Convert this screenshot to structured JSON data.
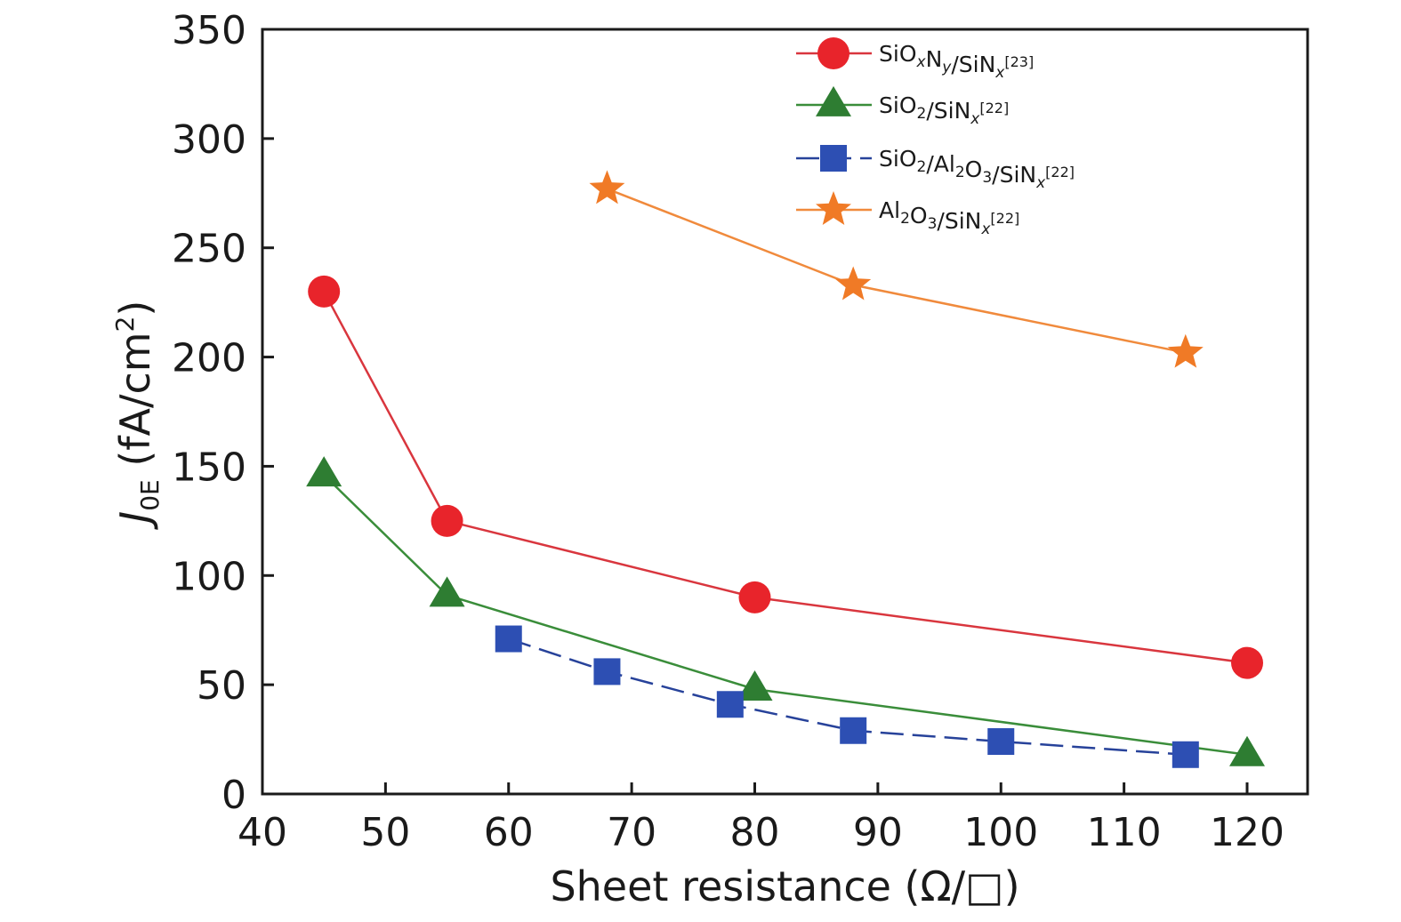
{
  "chart_data": {
    "type": "line",
    "title": "",
    "xlabel": "Sheet resistance (Ω/□)",
    "ylabel": {
      "main": "J",
      "subscript": "0E",
      "unit": " (fA/cm",
      "unit_sup": "2",
      "unit_end": ")"
    },
    "xlim": [
      40,
      125
    ],
    "ylim": [
      0,
      350
    ],
    "xticks": [
      "40",
      "50",
      "60",
      "70",
      "80",
      "90",
      "100",
      "110",
      "120"
    ],
    "yticks": [
      "0",
      "50",
      "100",
      "150",
      "200",
      "250",
      "300",
      "350"
    ],
    "legend_position": "top-right",
    "grid": false,
    "series": [
      {
        "name_parts": [
          [
            "SiO",
            ""
          ],
          [
            "x",
            "sub"
          ],
          [
            "N",
            ""
          ],
          [
            "y",
            "sub"
          ],
          [
            "/SiN",
            ""
          ],
          [
            "x",
            "sub"
          ],
          [
            "[23]",
            "sup"
          ]
        ],
        "marker": "circle",
        "color": "#e8242b",
        "line_color": "#d9363e",
        "dashed": false,
        "x": [
          45,
          55,
          80,
          120
        ],
        "y": [
          230,
          125,
          90,
          60
        ]
      },
      {
        "name_parts": [
          [
            "SiO",
            ""
          ],
          [
            "2",
            "sub"
          ],
          [
            "/SiN",
            ""
          ],
          [
            "x",
            "sub"
          ],
          [
            "[22]",
            "sup"
          ]
        ],
        "marker": "triangle",
        "color": "#2e7d32",
        "line_color": "#3a8d3a",
        "dashed": false,
        "x": [
          45,
          55,
          80,
          120
        ],
        "y": [
          146,
          91,
          48,
          18
        ]
      },
      {
        "name_parts": [
          [
            "SiO",
            ""
          ],
          [
            "2",
            "sub"
          ],
          [
            "/Al",
            ""
          ],
          [
            "2",
            "sub"
          ],
          [
            "O",
            ""
          ],
          [
            "3",
            "sub"
          ],
          [
            "/SiN",
            ""
          ],
          [
            "x",
            "sub"
          ],
          [
            "[22]",
            "sup"
          ]
        ],
        "marker": "square",
        "color": "#2d4fb3",
        "line_color": "#27429a",
        "dashed": true,
        "x": [
          60,
          68,
          78,
          88,
          100,
          115
        ],
        "y": [
          71,
          56,
          41,
          29,
          24,
          18
        ]
      },
      {
        "name_parts": [
          [
            "Al",
            ""
          ],
          [
            "2",
            "sub"
          ],
          [
            "O",
            ""
          ],
          [
            "3",
            "sub"
          ],
          [
            "/SiN",
            ""
          ],
          [
            "x",
            "sub"
          ],
          [
            "[22]",
            "sup"
          ]
        ],
        "marker": "star",
        "color": "#f07a26",
        "line_color": "#f08a3c",
        "dashed": false,
        "x": [
          68,
          88,
          115
        ],
        "y": [
          277,
          233,
          202
        ]
      }
    ]
  }
}
